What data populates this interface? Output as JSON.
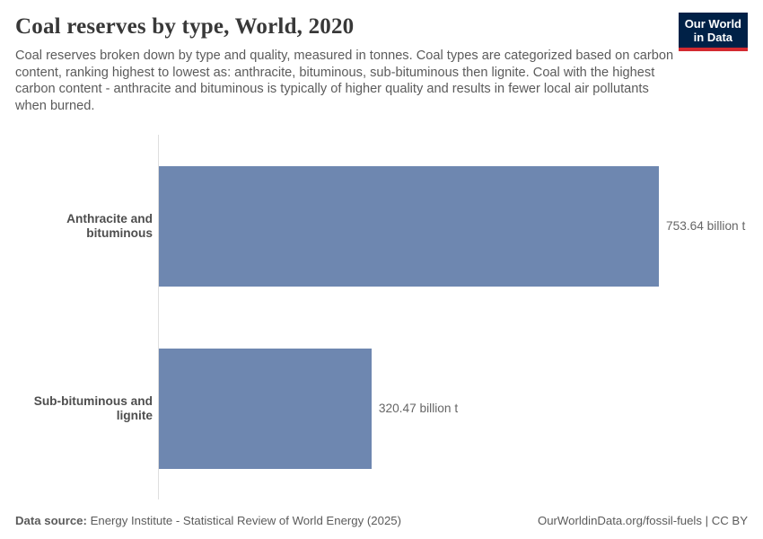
{
  "header": {
    "title": "Coal reserves by type, World, 2020",
    "subtitle": "Coal reserves broken down by type and quality, measured in tonnes. Coal types are categorized based on carbon content, ranking highest to lowest as: anthracite, bituminous, sub-bituminous then lignite. Coal with the highest carbon content - anthracite and bituminous is typically of higher quality and results in fewer local air pollutants when burned.",
    "logo": {
      "line1": "Our World",
      "line2": "in Data"
    }
  },
  "chart_data": {
    "type": "bar",
    "orientation": "horizontal",
    "categories": [
      "Anthracite and bituminous",
      "Sub-bituminous and lignite"
    ],
    "values": [
      753.64,
      320.47
    ],
    "value_labels": [
      "753.64 billion t",
      "320.47 billion t"
    ],
    "unit": "billion t",
    "xlim": [
      0,
      753.64
    ],
    "grid": false,
    "legend": false,
    "title": "Coal reserves by type, World, 2020"
  },
  "colors": {
    "bar": "#6e87b0",
    "axis_line": "#dedede",
    "logo_background": "#002147",
    "logo_underline": "#d32a30",
    "title_text": "#383838",
    "body_text": "#5b5b5b",
    "value_text": "#666666"
  },
  "footer": {
    "source_label": "Data source:",
    "source_text": "Energy Institute - Statistical Review of World Energy (2025)",
    "right_text": "OurWorldinData.org/fossil-fuels | CC BY"
  }
}
